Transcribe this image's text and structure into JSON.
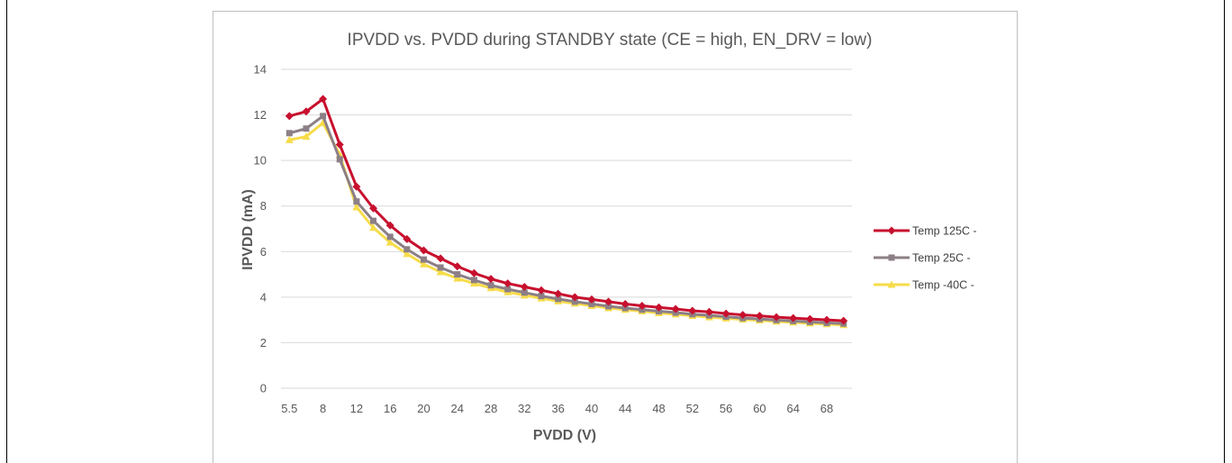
{
  "chart_data": {
    "type": "line",
    "title": "IPVDD vs. PVDD during STANDBY state (CE = high, EN_DRV = low)",
    "xlabel": "PVDD (V)",
    "ylabel": "IPVDD (mA)",
    "x": [
      5.5,
      6.5,
      8,
      10,
      12,
      14,
      16,
      18,
      20,
      22,
      24,
      26,
      28,
      30,
      32,
      34,
      36,
      38,
      40,
      42,
      44,
      46,
      48,
      50,
      52,
      54,
      56,
      58,
      60,
      62,
      64,
      66,
      68,
      70
    ],
    "x_tick_labels": [
      "5.5",
      "8",
      "12",
      "16",
      "20",
      "24",
      "28",
      "32",
      "36",
      "40",
      "44",
      "48",
      "52",
      "56",
      "60",
      "64",
      "68"
    ],
    "ylim": [
      0,
      14
    ],
    "y_ticks": [
      0,
      2,
      4,
      6,
      8,
      10,
      12,
      14
    ],
    "grid": true,
    "legend_position": "right",
    "series": [
      {
        "name": "Temp 125C -",
        "color": "#c8102e",
        "marker": "diamond",
        "values": [
          11.95,
          12.15,
          12.7,
          10.7,
          8.85,
          7.9,
          7.15,
          6.55,
          6.05,
          5.7,
          5.35,
          5.05,
          4.8,
          4.6,
          4.45,
          4.3,
          4.15,
          4.0,
          3.9,
          3.8,
          3.7,
          3.62,
          3.55,
          3.48,
          3.4,
          3.35,
          3.28,
          3.22,
          3.18,
          3.12,
          3.08,
          3.04,
          3.0,
          2.96
        ]
      },
      {
        "name": "Temp 25C -",
        "color": "#8c7f86",
        "marker": "square",
        "values": [
          11.2,
          11.4,
          11.95,
          10.05,
          8.2,
          7.35,
          6.65,
          6.1,
          5.65,
          5.3,
          5.0,
          4.75,
          4.52,
          4.35,
          4.2,
          4.05,
          3.92,
          3.8,
          3.7,
          3.6,
          3.52,
          3.45,
          3.38,
          3.32,
          3.25,
          3.2,
          3.14,
          3.08,
          3.04,
          2.99,
          2.95,
          2.91,
          2.87,
          2.84
        ]
      },
      {
        "name": "Temp -40C -",
        "color": "#f7dc4a",
        "marker": "triangle",
        "values": [
          10.9,
          11.05,
          11.65,
          10.25,
          7.95,
          7.05,
          6.4,
          5.9,
          5.45,
          5.1,
          4.82,
          4.6,
          4.4,
          4.22,
          4.08,
          3.95,
          3.82,
          3.72,
          3.62,
          3.52,
          3.45,
          3.38,
          3.3,
          3.25,
          3.18,
          3.12,
          3.07,
          3.02,
          2.98,
          2.93,
          2.89,
          2.85,
          2.82,
          2.78
        ]
      }
    ]
  }
}
